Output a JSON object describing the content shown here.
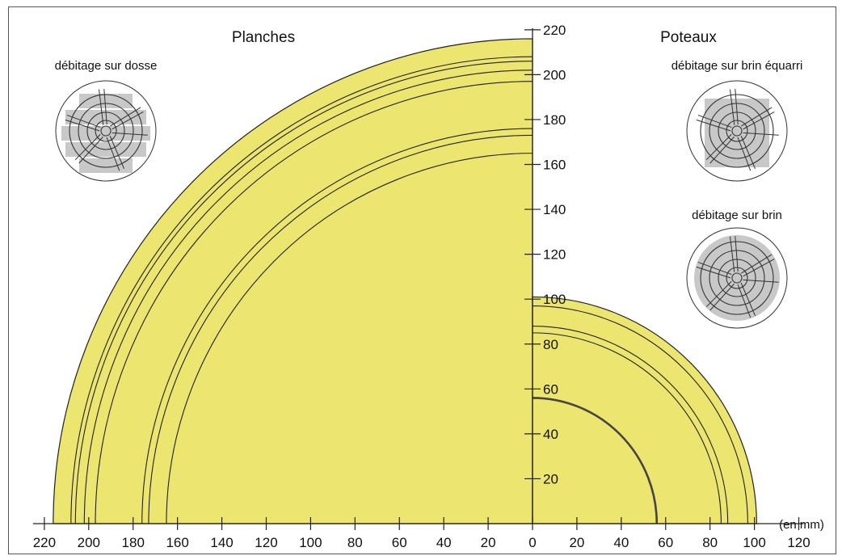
{
  "titles": {
    "left": "Planches",
    "right": "Poteaux"
  },
  "units_label": "(en mm)",
  "colors": {
    "wood": "#ece56f",
    "ring": "#222222",
    "sawn": "#c8c8c8"
  },
  "methods": {
    "dosse": "débitage sur dosse",
    "brin_equarri": "débitage sur brin équarri",
    "brin": "débitage sur brin"
  },
  "chart_data": {
    "type": "diagram",
    "horizontal_axis": {
      "left_ticks": [
        220,
        200,
        180,
        160,
        140,
        120,
        100,
        80,
        60,
        40,
        20,
        0
      ],
      "right_ticks": [
        20,
        40,
        60,
        80,
        100,
        120
      ]
    },
    "vertical_axis": {
      "ticks": [
        20,
        40,
        60,
        80,
        100,
        120,
        140,
        160,
        180,
        200,
        220
      ]
    },
    "planches": {
      "outer_radius": 216,
      "ring_radii": [
        208,
        206,
        202,
        197,
        176,
        173,
        165
      ]
    },
    "poteaux": {
      "outer_radius": 101,
      "ring_radii": [
        97,
        88,
        85
      ],
      "heartwood_radius": 56
    }
  }
}
